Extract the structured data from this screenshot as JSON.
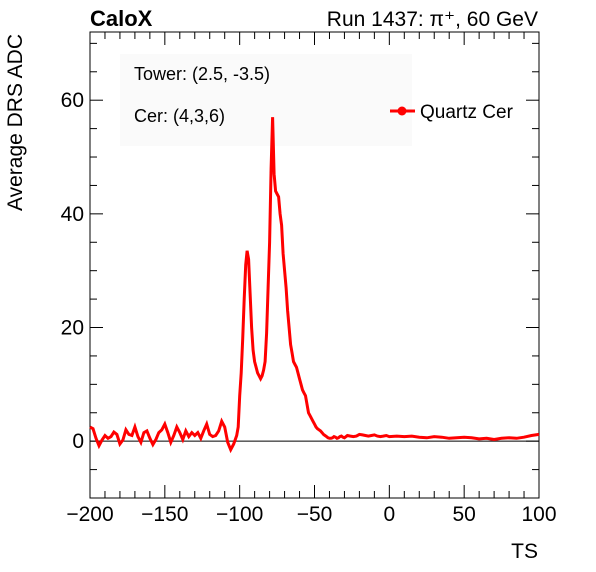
{
  "header": {
    "left": "CaloX",
    "right": "Run 1437: π⁺, 60 GeV"
  },
  "annotations": {
    "line1": "Tower: (2.5, -3.5)",
    "line2": "Cer: (4,3,6)"
  },
  "colors": {
    "series": "#ff0000",
    "axis": "#000000"
  },
  "chart_data": {
    "type": "line",
    "title": "",
    "xlabel": "TS",
    "ylabel": "Average DRS ADC",
    "xlim": [
      -200,
      100
    ],
    "ylim": [
      -10,
      72
    ],
    "x_ticks": [
      -200,
      -150,
      -100,
      -50,
      0,
      50,
      100
    ],
    "x_tick_labels": [
      "−200",
      "−150",
      "−100",
      "−50",
      "0",
      "50",
      "100"
    ],
    "y_ticks": [
      0,
      20,
      40,
      60
    ],
    "y_tick_labels": [
      "0",
      "20",
      "40",
      "60"
    ],
    "reference_line_y": 0,
    "legend": {
      "placement": "top-right"
    },
    "series": [
      {
        "name": "Quartz Cer",
        "x": [
          -200,
          -198,
          -196,
          -194,
          -192,
          -190,
          -188,
          -186,
          -184,
          -182,
          -180,
          -178,
          -176,
          -174,
          -172,
          -170,
          -168,
          -166,
          -164,
          -162,
          -160,
          -158,
          -156,
          -154,
          -152,
          -150,
          -148,
          -146,
          -144,
          -142,
          -140,
          -138,
          -136,
          -134,
          -132,
          -130,
          -128,
          -126,
          -124,
          -122,
          -120,
          -118,
          -116,
          -114,
          -112,
          -110,
          -108,
          -106,
          -104,
          -102,
          -101,
          -100,
          -99,
          -98,
          -97,
          -96,
          -95,
          -94,
          -93,
          -92,
          -91,
          -90,
          -89,
          -88,
          -87,
          -86,
          -85,
          -84,
          -83,
          -82,
          -81,
          -80,
          -79,
          -78,
          -77,
          -76,
          -75,
          -74,
          -73,
          -72,
          -71,
          -70,
          -69,
          -68,
          -67,
          -66,
          -65,
          -64,
          -63,
          -62,
          -61,
          -60,
          -59,
          -58,
          -57,
          -56,
          -55,
          -54,
          -53,
          -52,
          -51,
          -50,
          -49,
          -48,
          -47,
          -46,
          -45,
          -44,
          -43,
          -42,
          -41,
          -40,
          -39,
          -38,
          -37,
          -36,
          -35,
          -34,
          -33,
          -32,
          -31,
          -30,
          -28,
          -26,
          -24,
          -22,
          -20,
          -18,
          -16,
          -14,
          -12,
          -10,
          -8,
          -6,
          -4,
          -2,
          0,
          5,
          10,
          15,
          20,
          25,
          30,
          35,
          40,
          45,
          50,
          55,
          60,
          65,
          70,
          75,
          80,
          85,
          90,
          95,
          100
        ],
        "y": [
          2.5,
          2.2,
          0.5,
          -0.8,
          0.2,
          1.0,
          0.5,
          0.8,
          1.6,
          1.2,
          -0.5,
          0.2,
          2.0,
          1.2,
          1.0,
          2.5,
          0.8,
          -0.2,
          1.5,
          1.8,
          0.5,
          -0.6,
          0.3,
          1.5,
          2.0,
          3.0,
          1.5,
          -0.2,
          1.0,
          2.5,
          1.5,
          0.3,
          1.8,
          0.8,
          1.5,
          1.0,
          1.5,
          0.5,
          1.8,
          3.0,
          1.2,
          0.8,
          1.0,
          1.8,
          3.5,
          2.5,
          -0.2,
          -1.5,
          -0.5,
          1.0,
          2.5,
          8.0,
          12.0,
          18.0,
          25.0,
          31.0,
          33.5,
          32.0,
          26.0,
          20.0,
          16.0,
          14.0,
          13.0,
          12.0,
          11.5,
          11.0,
          11.5,
          12.5,
          14.0,
          19.0,
          27.0,
          35.0,
          48.0,
          57.0,
          47.0,
          44.0,
          43.5,
          43.0,
          40.0,
          38.0,
          33.0,
          30.0,
          27.0,
          23.0,
          20.0,
          17.0,
          15.5,
          14.0,
          13.5,
          13.0,
          12.0,
          11.0,
          10.0,
          9.0,
          8.5,
          8.0,
          6.5,
          5.0,
          4.5,
          4.0,
          3.5,
          3.0,
          2.5,
          2.2,
          2.0,
          1.8,
          1.5,
          1.2,
          1.0,
          0.8,
          0.6,
          0.5,
          0.5,
          0.6,
          0.8,
          0.7,
          0.5,
          0.6,
          0.8,
          0.9,
          0.7,
          0.6,
          1.0,
          0.9,
          0.8,
          0.9,
          1.2,
          1.1,
          1.0,
          0.9,
          1.0,
          1.1,
          0.9,
          0.8,
          0.9,
          1.0,
          0.8,
          0.9,
          0.8,
          0.9,
          0.7,
          0.6,
          0.8,
          0.7,
          0.5,
          0.6,
          0.7,
          0.6,
          0.4,
          0.5,
          0.3,
          0.5,
          0.6,
          0.5,
          0.7,
          1.0,
          1.2
        ]
      }
    ]
  }
}
